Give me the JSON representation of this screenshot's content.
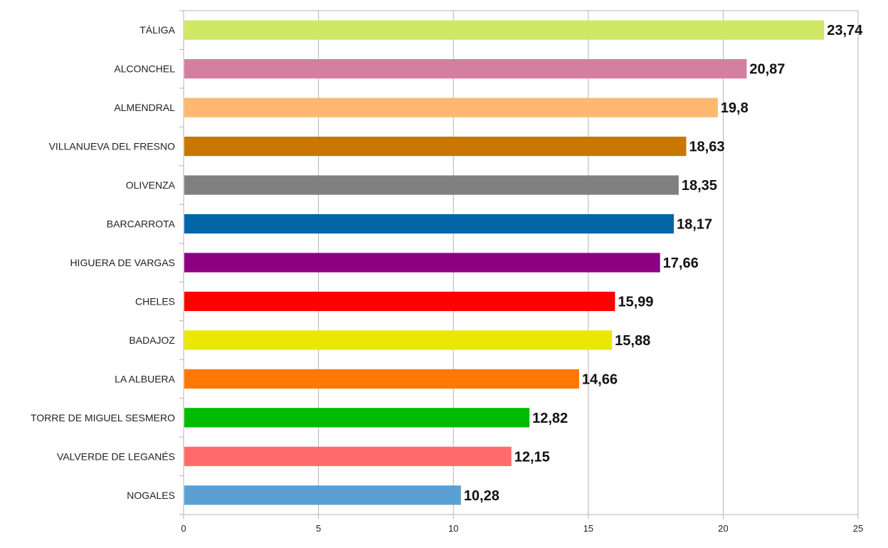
{
  "chart_data": {
    "type": "bar",
    "orientation": "horizontal",
    "categories": [
      "TÁLIGA",
      "ALCONCHEL",
      "ALMENDRAL",
      "VILLANUEVA DEL FRESNO",
      "OLIVENZA",
      "BARCARROTA",
      "HIGUERA DE VARGAS",
      "CHELES",
      "BADAJOZ",
      "LA ALBUERA",
      "TORRE DE MIGUEL SESMERO",
      "VALVERDE DE LEGANÉS",
      "NOGALES"
    ],
    "values": [
      23.74,
      20.87,
      19.8,
      18.63,
      18.35,
      18.17,
      17.66,
      15.99,
      15.88,
      14.66,
      12.82,
      12.15,
      10.28
    ],
    "value_labels": [
      "23,74",
      "20,87",
      "19,8",
      "18,63",
      "18,35",
      "18,17",
      "17,66",
      "15,99",
      "15,88",
      "14,66",
      "12,82",
      "12,15",
      "10,28"
    ],
    "colors": [
      "#cfe865",
      "#d47f9f",
      "#ffb870",
      "#c87800",
      "#808080",
      "#0066a8",
      "#8e0082",
      "#ff0000",
      "#e8e800",
      "#ff7800",
      "#00bb00",
      "#ff6b6b",
      "#5aa0d2"
    ],
    "x_ticks": [
      0,
      5,
      10,
      15,
      20,
      25
    ],
    "x_tick_labels": [
      "0",
      "5",
      "10",
      "15",
      "20",
      "25"
    ],
    "xlim": [
      0,
      25
    ],
    "title": "",
    "xlabel": "",
    "ylabel": "",
    "grid": "vertical",
    "legend": "none"
  }
}
